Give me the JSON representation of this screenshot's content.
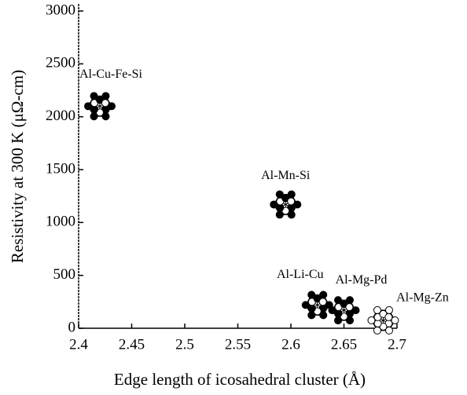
{
  "chart_data": {
    "type": "scatter",
    "x_label": "Edge length of icosahedral cluster (Å)",
    "y_label": "Resistivity at 300 K (μΩ-cm)",
    "point_labels": [
      "Al-Cu-Fe-Si",
      "Al-Mn-Si",
      "Al-Li-Cu",
      "Al-Mg-Pd",
      "Al-Mg-Zn"
    ],
    "x": [
      2.42,
      2.595,
      2.625,
      2.65,
      2.687
    ],
    "values": [
      2100,
      1170,
      220,
      170,
      75
    ],
    "marker_styles": [
      "filled",
      "filled",
      "filled",
      "filled",
      "open"
    ],
    "color": "#000000",
    "xlim": [
      2.4,
      2.7
    ],
    "xticks": [
      2.4,
      2.45,
      2.5,
      2.55,
      2.6,
      2.65,
      2.7
    ],
    "ylim": [
      0,
      3000
    ],
    "yticks": [
      0,
      500,
      1000,
      1500,
      2000,
      2500,
      3000
    ]
  }
}
